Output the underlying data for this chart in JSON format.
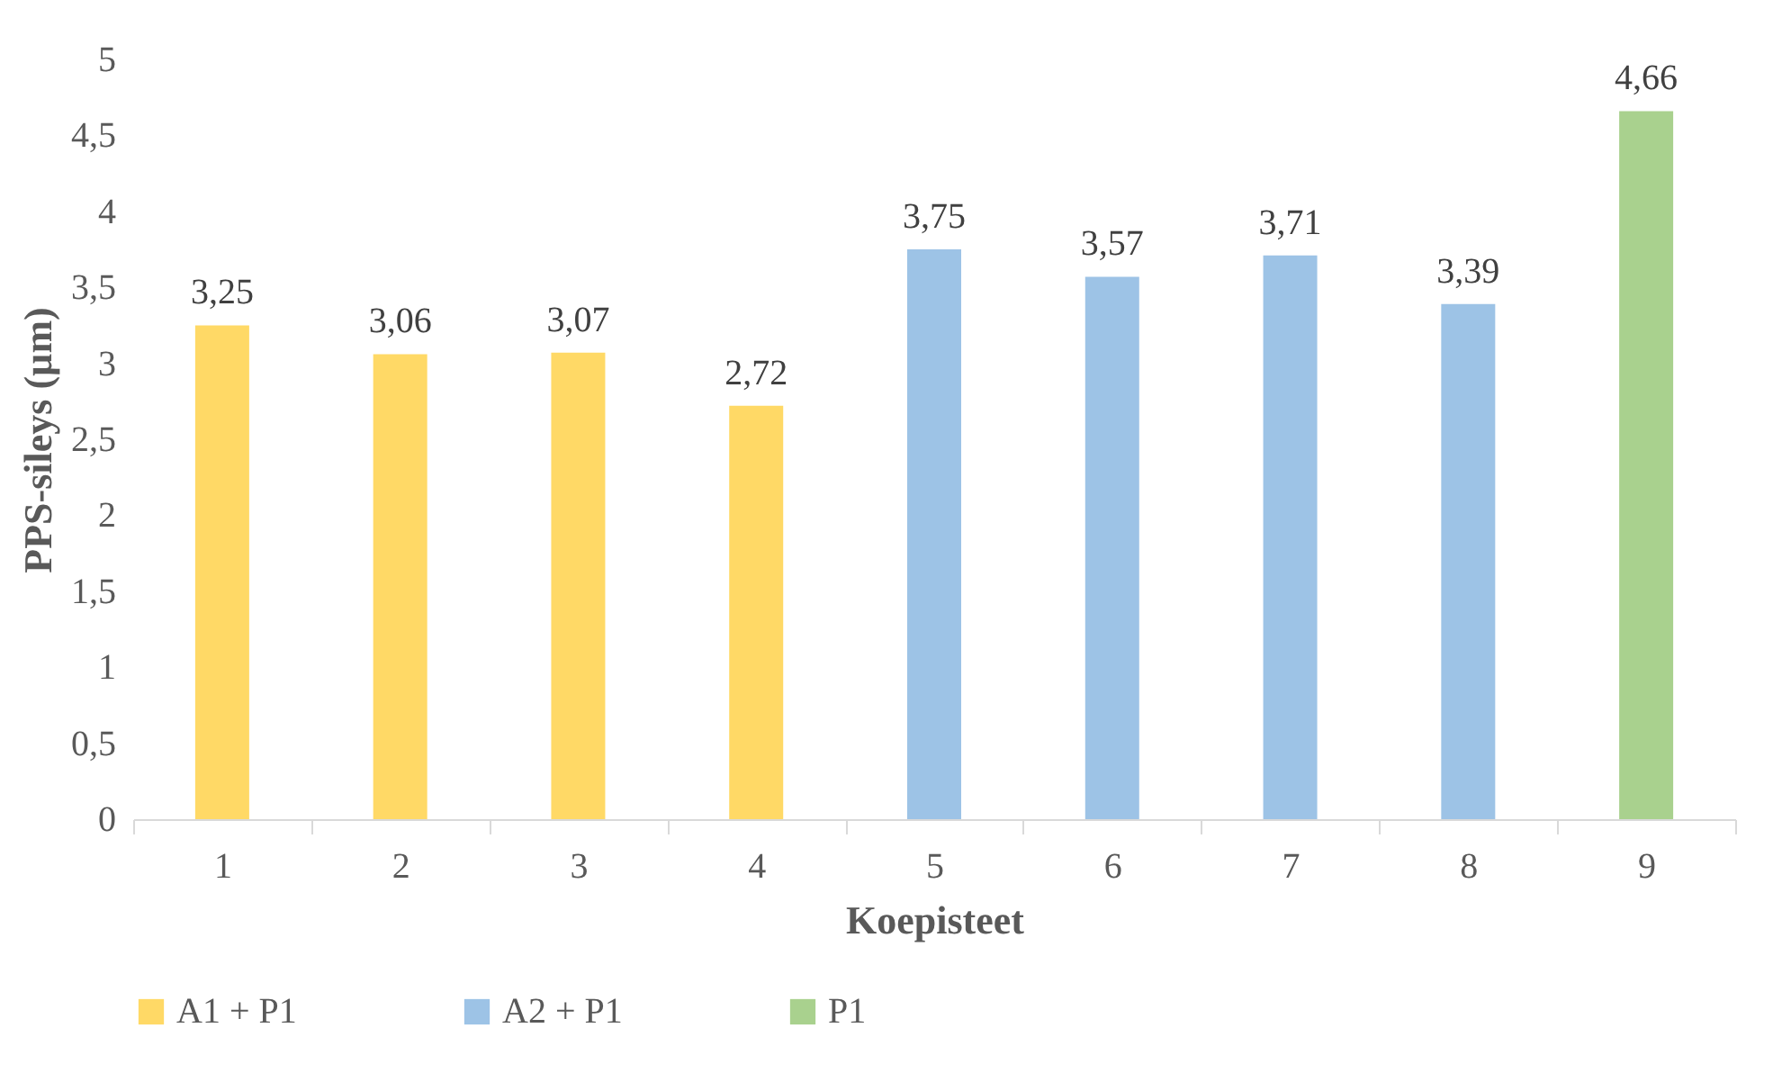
{
  "chart_data": {
    "type": "bar",
    "xlabel": "Koepisteet",
    "ylabel": "PPS-sileys (µm)",
    "categories": [
      "1",
      "2",
      "3",
      "4",
      "5",
      "6",
      "7",
      "8",
      "9"
    ],
    "series": [
      {
        "name": "A1 + P1",
        "color": "#ffd966",
        "values": [
          3.25,
          3.06,
          3.07,
          2.72,
          null,
          null,
          null,
          null,
          null
        ],
        "value_labels": [
          "3,25",
          "3,06",
          "3,07",
          "2,72",
          null,
          null,
          null,
          null,
          null
        ]
      },
      {
        "name": "A2 + P1",
        "color": "#9dc3e6",
        "values": [
          null,
          null,
          null,
          null,
          3.75,
          3.57,
          3.71,
          3.39,
          null
        ],
        "value_labels": [
          null,
          null,
          null,
          null,
          "3,75",
          "3,57",
          "3,71",
          "3,39",
          null
        ]
      },
      {
        "name": "P1",
        "color": "#a9d18e",
        "values": [
          null,
          null,
          null,
          null,
          null,
          null,
          null,
          null,
          4.66
        ],
        "value_labels": [
          null,
          null,
          null,
          null,
          null,
          null,
          null,
          null,
          "4,66"
        ]
      }
    ],
    "ylim": [
      0,
      5
    ],
    "yticks": [
      0,
      {
        "value": 0.5,
        "label": "0,5"
      },
      1,
      {
        "value": 1.5,
        "label": "1,5"
      },
      2,
      {
        "value": 2.5,
        "label": "2,5"
      },
      3,
      {
        "value": 3.5,
        "label": "3,5"
      },
      4,
      {
        "value": 4.5,
        "label": "4,5"
      },
      5
    ],
    "grid": false,
    "legend": "bottom"
  }
}
